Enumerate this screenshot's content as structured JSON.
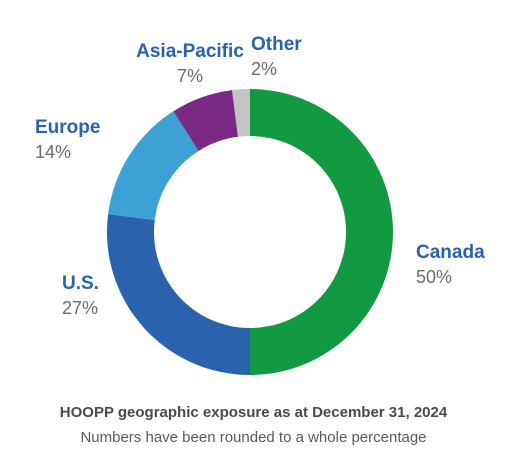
{
  "chart_data": {
    "type": "pie",
    "donut": true,
    "slices": [
      {
        "label": "Canada",
        "value": 50,
        "display": "50%",
        "color": "#119a41"
      },
      {
        "label": "U.S.",
        "value": 27,
        "display": "27%",
        "color": "#2a62ae"
      },
      {
        "label": "Europe",
        "value": 14,
        "display": "14%",
        "color": "#3ca1d5"
      },
      {
        "label": "Asia-Pacific",
        "value": 7,
        "display": "7%",
        "color": "#7a2a85"
      },
      {
        "label": "Other",
        "value": 2,
        "display": "2%",
        "color": "#c4c4c4"
      }
    ],
    "label_color": "#2a62ae",
    "title": "HOOPP geographic exposure as at December 31, 2024",
    "subtitle": "Numbers have been rounded to a whole percentage"
  }
}
